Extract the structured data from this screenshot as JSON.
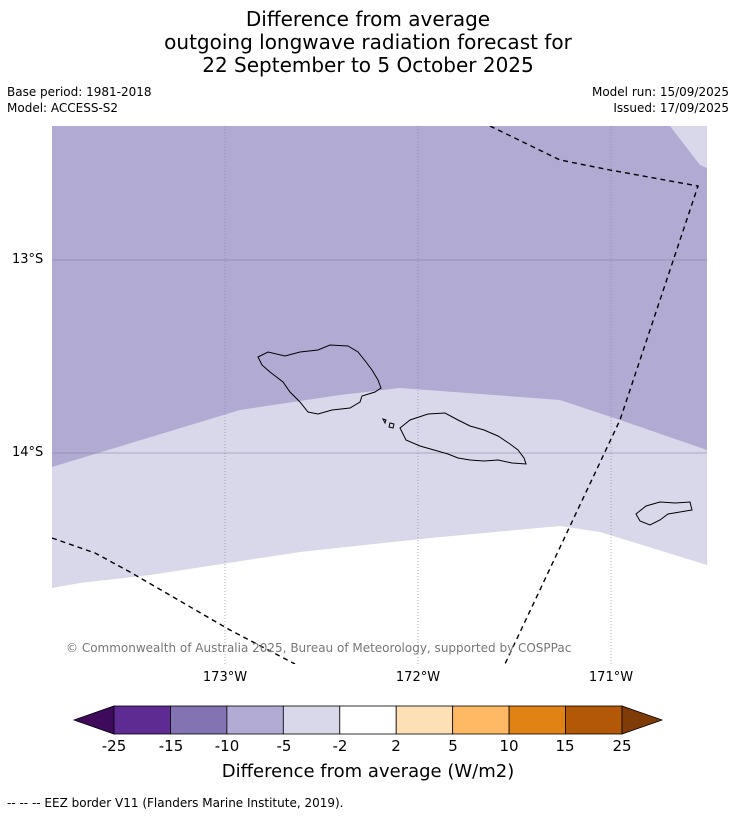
{
  "title": {
    "line1": "Difference from average",
    "line2": "outgoing longwave radiation forecast for",
    "line3": "22 September to 5 October 2025"
  },
  "meta": {
    "base_period": "Base period: 1981-2018",
    "model": "Model: ACCESS-S2",
    "model_run": "Model run: 15/09/2025",
    "issued": "Issued: 17/09/2025"
  },
  "map": {
    "lat_labels": [
      "13°S",
      "14°S"
    ],
    "lon_labels": [
      "173°W",
      "172°W",
      "171°W"
    ],
    "copyright": "© Commonwealth of Australia 2025, Bureau of Meteorology, supported by COSPPac",
    "colors": {
      "band_-10_-5": "#b1abd3",
      "band_-5_-2": "#d8d8ea",
      "band_-2_2": "#ffffff",
      "land_outline": "#000000",
      "eez_line": "#000000",
      "grid": "#7a7a9a"
    }
  },
  "colorbar": {
    "ticks": [
      "-25",
      "-15",
      "-10",
      "-5",
      "-2",
      "2",
      "5",
      "10",
      "15",
      "25"
    ],
    "colors": [
      "#3d0a5c",
      "#5e2b92",
      "#8373b2",
      "#b1abd3",
      "#d8d8ea",
      "#ffffff",
      "#fee0b6",
      "#fdb863",
      "#e08214",
      "#b35806",
      "#7f3b08"
    ],
    "label": "Difference from average (W/m2)"
  },
  "footnote": "--  --  -- EEZ border V11 (Flanders Marine Institute, 2019)."
}
